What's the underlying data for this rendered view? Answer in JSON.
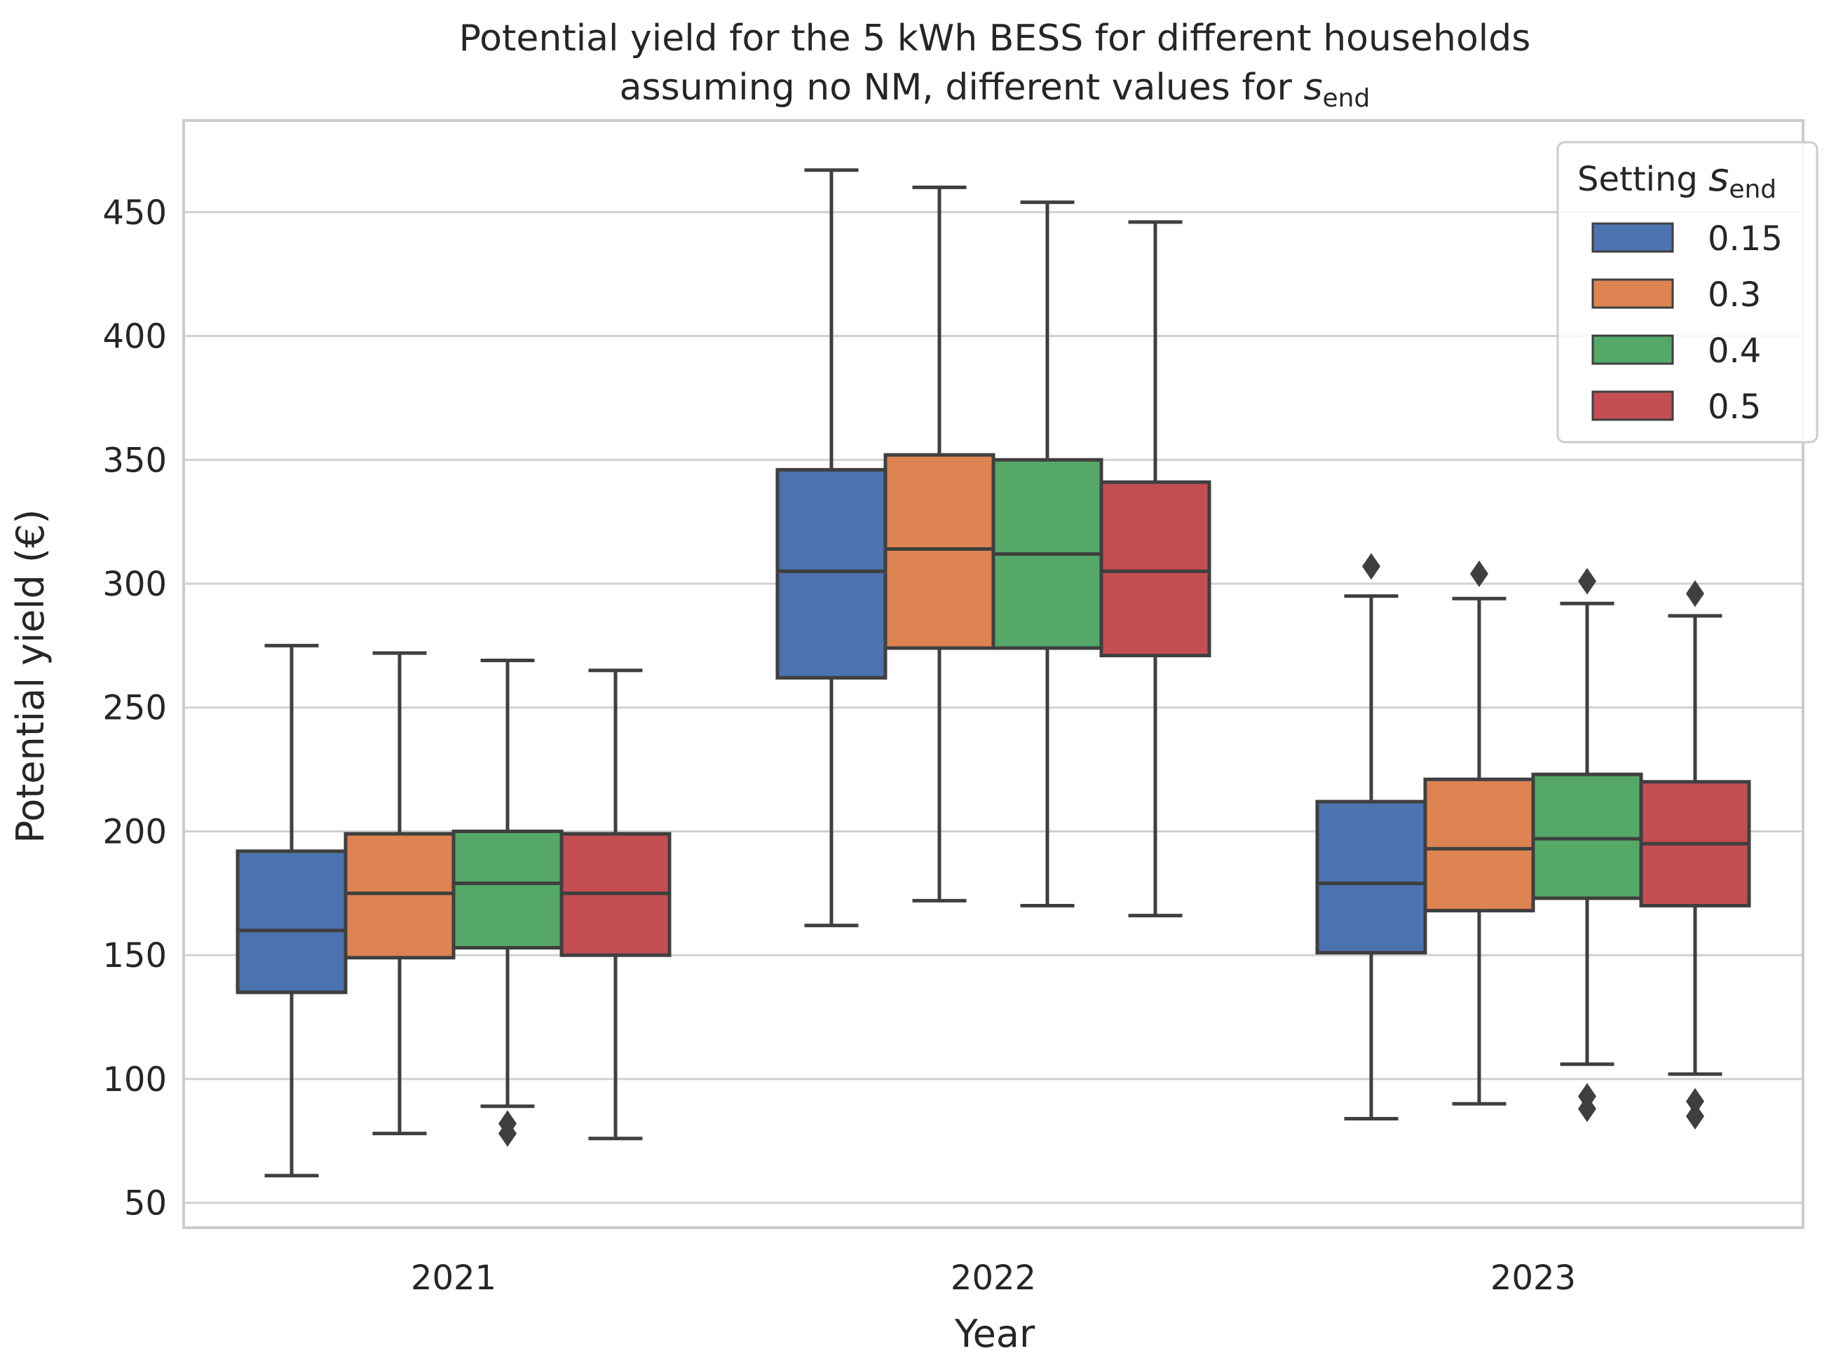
{
  "chart_data": {
    "type": "box",
    "title_line1": "Potential yield for the 5 kWh BESS for different households",
    "title_line2_prefix": "assuming no NM, different values for ",
    "title_symbol": "s",
    "title_subscript": "end",
    "xlabel": "Year",
    "ylabel": "Potential yield (€)",
    "ylim": [
      40,
      487
    ],
    "yticks": [
      50,
      100,
      150,
      200,
      250,
      300,
      350,
      400,
      450
    ],
    "grid": true,
    "categories": [
      "2021",
      "2022",
      "2023"
    ],
    "legend": {
      "title_prefix": "Setting ",
      "title_symbol": "s",
      "title_subscript": "end",
      "placement": "top-right"
    },
    "series": [
      {
        "name": "0.15",
        "color": "#4c72b0",
        "boxes": [
          {
            "whislo": 61,
            "q1": 135,
            "med": 160,
            "q3": 192,
            "whishi": 275,
            "fliers": []
          },
          {
            "whislo": 162,
            "q1": 262,
            "med": 305,
            "q3": 346,
            "whishi": 467,
            "fliers": []
          },
          {
            "whislo": 84,
            "q1": 151,
            "med": 179,
            "q3": 212,
            "whishi": 295,
            "fliers": [
              307
            ]
          }
        ]
      },
      {
        "name": "0.3",
        "color": "#dd8452",
        "boxes": [
          {
            "whislo": 78,
            "q1": 149,
            "med": 175,
            "q3": 199,
            "whishi": 272,
            "fliers": []
          },
          {
            "whislo": 172,
            "q1": 274,
            "med": 314,
            "q3": 352,
            "whishi": 460,
            "fliers": []
          },
          {
            "whislo": 90,
            "q1": 168,
            "med": 193,
            "q3": 221,
            "whishi": 294,
            "fliers": [
              304
            ]
          }
        ]
      },
      {
        "name": "0.4",
        "color": "#55a868",
        "boxes": [
          {
            "whislo": 89,
            "q1": 153,
            "med": 179,
            "q3": 200,
            "whishi": 269,
            "fliers": [
              82,
              78
            ]
          },
          {
            "whislo": 170,
            "q1": 274,
            "med": 312,
            "q3": 350,
            "whishi": 454,
            "fliers": []
          },
          {
            "whislo": 106,
            "q1": 173,
            "med": 197,
            "q3": 223,
            "whishi": 292,
            "fliers": [
              301,
              93,
              88
            ]
          }
        ]
      },
      {
        "name": "0.5",
        "color": "#c44e52",
        "boxes": [
          {
            "whislo": 76,
            "q1": 150,
            "med": 175,
            "q3": 199,
            "whishi": 265,
            "fliers": []
          },
          {
            "whislo": 166,
            "q1": 271,
            "med": 305,
            "q3": 341,
            "whishi": 446,
            "fliers": []
          },
          {
            "whislo": 102,
            "q1": 170,
            "med": 195,
            "q3": 220,
            "whishi": 287,
            "fliers": [
              296,
              91,
              85
            ]
          }
        ]
      }
    ]
  }
}
